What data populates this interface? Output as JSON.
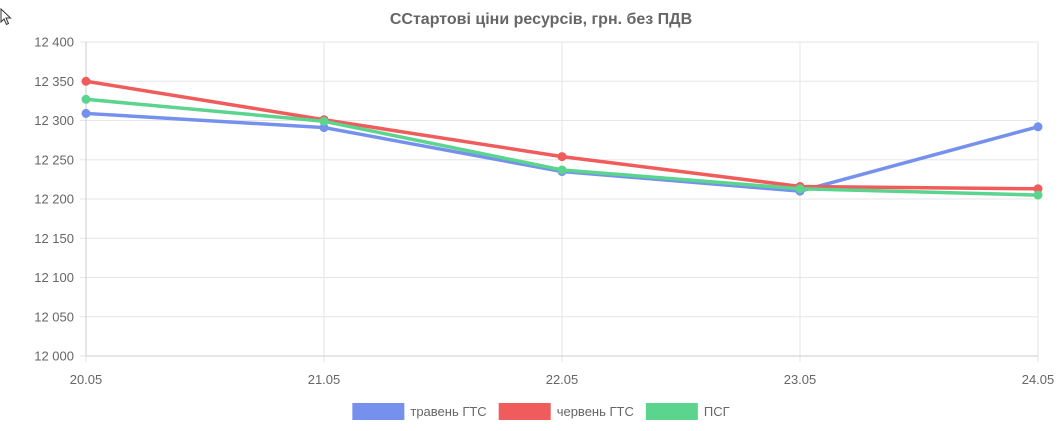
{
  "cursor_icon": "arrow-cursor-icon",
  "chart_data": {
    "type": "line",
    "title": "ССтартові ціни ресурсів, грн. без ПДВ",
    "categories": [
      "20.05",
      "21.05",
      "22.05",
      "23.05",
      "24.05"
    ],
    "ylim": [
      12000,
      12400
    ],
    "yticks": [
      12000,
      12050,
      12100,
      12150,
      12200,
      12250,
      12300,
      12350,
      12400
    ],
    "ytick_labels": [
      "12 000",
      "12 050",
      "12 100",
      "12 150",
      "12 200",
      "12 250",
      "12 300",
      "12 350",
      "12 400"
    ],
    "grid": true,
    "legend_position": "bottom",
    "series": [
      {
        "name": "травень ГТС",
        "color": "#7591ed",
        "values": [
          12309,
          12291,
          12235,
          12210,
          12292
        ]
      },
      {
        "name": "червень ГТС",
        "color": "#f05b5b",
        "values": [
          12350,
          12301,
          12254,
          12216,
          12213
        ]
      },
      {
        "name": "ПСГ",
        "color": "#5bd48e",
        "values": [
          12327,
          12299,
          12237,
          12213,
          12205
        ]
      }
    ]
  }
}
